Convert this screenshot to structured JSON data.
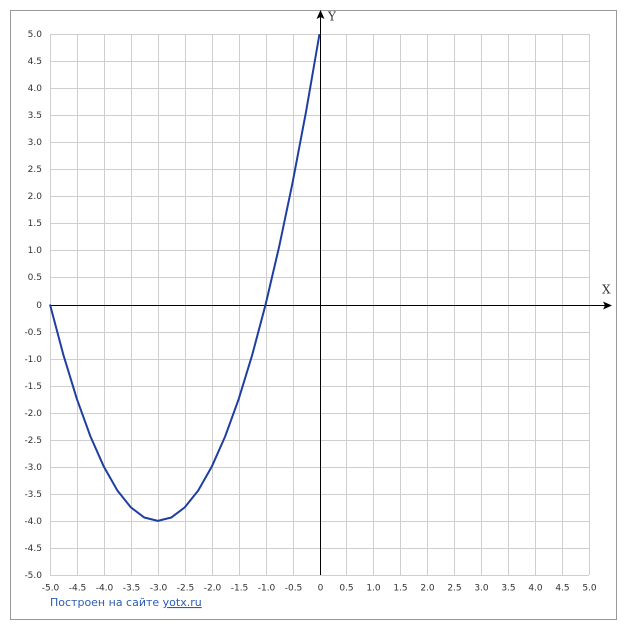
{
  "chart_data": {
    "type": "line",
    "x_label": "X",
    "y_label": "Y",
    "x": [
      -5,
      -4.75,
      -4.5,
      -4.25,
      -4,
      -3.75,
      -3.5,
      -3.25,
      -3,
      -2.75,
      -2.5,
      -2.25,
      -2,
      -1.75,
      -1.5,
      -1.25,
      -1,
      -0.75,
      -0.5,
      -0.25,
      0
    ],
    "series": [
      {
        "color": "#1f3fa0",
        "values": [
          0,
          -0.9375,
          -1.75,
          -2.4375,
          -3,
          -3.4375,
          -3.75,
          -3.9375,
          -4,
          -3.9375,
          -3.75,
          -3.4375,
          -3,
          -2.4375,
          -1.75,
          -0.9375,
          0,
          1.0625,
          2.25,
          3.5625,
          5
        ]
      }
    ],
    "xlim": [
      -5,
      5
    ],
    "ylim": [
      -5,
      5
    ],
    "xticks": [
      {
        "value": -5,
        "label": "-5.0"
      },
      -4.5,
      {
        "value": -4,
        "label": "-4.0"
      },
      -3.5,
      {
        "value": -3,
        "label": "-3.0"
      },
      -2.5,
      {
        "value": -2,
        "label": "-2.0"
      },
      -1.5,
      {
        "value": -1,
        "label": "-1.0"
      },
      -0.5,
      0,
      0.5,
      {
        "value": 1,
        "label": "1.0"
      },
      1.5,
      {
        "value": 2,
        "label": "2.0"
      },
      2.5,
      {
        "value": 3,
        "label": "3.0"
      },
      3.5,
      {
        "value": 4,
        "label": "4.0"
      },
      4.5,
      {
        "value": 5,
        "label": "5.0"
      }
    ],
    "yticks": [
      {
        "value": -5,
        "label": "-5.0"
      },
      -4.5,
      {
        "value": -4,
        "label": "-4.0"
      },
      -3.5,
      {
        "value": -3,
        "label": "-3.0"
      },
      -2.5,
      {
        "value": -2,
        "label": "-2.0"
      },
      -1.5,
      {
        "value": -1,
        "label": "-1.0"
      },
      -0.5,
      0,
      0.5,
      {
        "value": 1,
        "label": "1.0"
      },
      1.5,
      {
        "value": 2,
        "label": "2.0"
      },
      2.5,
      {
        "value": 3,
        "label": "3.0"
      },
      3.5,
      {
        "value": 4,
        "label": "4.0"
      },
      4.5,
      {
        "value": 5,
        "label": "5.0"
      }
    ],
    "grid": true,
    "credit": {
      "text": "Построен на сайте",
      "link": "yotx.ru"
    }
  }
}
